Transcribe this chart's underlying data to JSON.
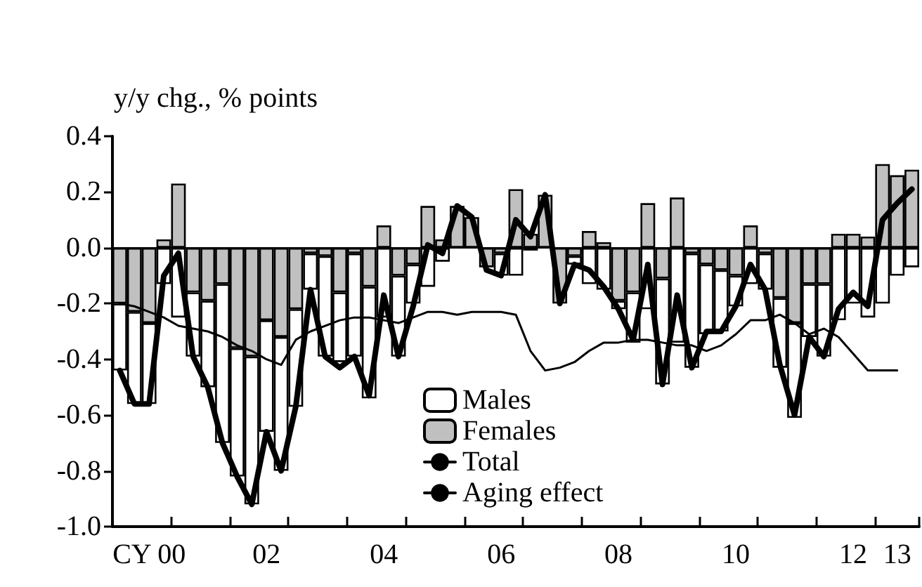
{
  "chart_data": {
    "type": "bar",
    "ylabel": "y/y chg., % points",
    "categories": [
      null,
      null,
      "CY 00",
      null,
      null,
      null,
      null,
      null,
      null,
      null,
      "02",
      null,
      null,
      null,
      null,
      null,
      null,
      null,
      "04",
      null,
      null,
      null,
      null,
      null,
      null,
      null,
      "06",
      null,
      null,
      null,
      null,
      null,
      null,
      null,
      "08",
      null,
      null,
      null,
      null,
      null,
      null,
      null,
      "10",
      null,
      null,
      null,
      null,
      null,
      null,
      null,
      "12",
      null,
      null,
      "13",
      null
    ],
    "stacked": true,
    "series": [
      {
        "name": "Females",
        "color": "#c0c0c0",
        "values": [
          -0.2,
          -0.23,
          -0.27,
          0.03,
          0.23,
          -0.16,
          -0.19,
          -0.13,
          -0.36,
          -0.39,
          -0.26,
          -0.32,
          -0.22,
          -0.02,
          -0.03,
          -0.16,
          -0.02,
          -0.14,
          0.08,
          -0.1,
          -0.06,
          0.15,
          0.03,
          0.15,
          0.11,
          -0.07,
          -0.02,
          0.21,
          0.05,
          0.19,
          -0.2,
          -0.03,
          0.06,
          0.02,
          -0.19,
          -0.16,
          0.16,
          -0.11,
          0.18,
          -0.02,
          -0.06,
          -0.08,
          -0.1,
          0.08,
          -0.02,
          -0.18,
          -0.27,
          -0.13,
          -0.13,
          0.05,
          0.05,
          0.04,
          0.3,
          0.26,
          0.28
        ]
      },
      {
        "name": "Males",
        "color": "#ffffff",
        "values": [
          -0.24,
          -0.33,
          -0.29,
          -0.13,
          -0.25,
          -0.23,
          -0.31,
          -0.57,
          -0.46,
          -0.53,
          -0.4,
          -0.48,
          -0.35,
          -0.13,
          -0.36,
          -0.25,
          -0.37,
          -0.4,
          -0.25,
          -0.29,
          -0.14,
          -0.14,
          -0.05,
          0,
          0,
          0,
          -0.08,
          -0.1,
          -0.01,
          0,
          0,
          -0.03,
          -0.13,
          -0.15,
          -0.03,
          -0.18,
          -0.22,
          -0.38,
          -0.34,
          -0.41,
          -0.25,
          -0.22,
          -0.11,
          -0.13,
          -0.13,
          -0.25,
          -0.34,
          -0.19,
          -0.26,
          -0.26,
          -0.2,
          -0.25,
          -0.2,
          -0.1,
          -0.07
        ]
      },
      {
        "name": "Total",
        "type": "line",
        "color": "#000000",
        "values": [
          -0.44,
          -0.56,
          -0.56,
          -0.1,
          -0.02,
          -0.39,
          -0.5,
          -0.7,
          -0.82,
          -0.92,
          -0.66,
          -0.8,
          -0.57,
          -0.15,
          -0.39,
          -0.43,
          -0.39,
          -0.53,
          -0.17,
          -0.39,
          -0.21,
          0.01,
          -0.02,
          0.15,
          0.11,
          -0.08,
          -0.1,
          0.1,
          0.04,
          0.19,
          -0.2,
          -0.06,
          -0.08,
          -0.14,
          -0.22,
          -0.33,
          -0.06,
          -0.49,
          -0.17,
          -0.43,
          -0.3,
          -0.3,
          -0.21,
          -0.06,
          -0.15,
          -0.42,
          -0.6,
          -0.32,
          -0.39,
          -0.22,
          -0.16,
          -0.21,
          0.1,
          0.16,
          0.21
        ]
      },
      {
        "name": "Aging effect",
        "type": "line",
        "color": "#000000",
        "values": [
          -0.2,
          -0.21,
          -0.23,
          -0.25,
          -0.28,
          -0.29,
          -0.3,
          -0.32,
          -0.35,
          -0.37,
          -0.4,
          -0.42,
          -0.33,
          -0.3,
          -0.28,
          -0.26,
          -0.25,
          -0.25,
          -0.26,
          -0.27,
          -0.25,
          -0.23,
          -0.23,
          -0.24,
          -0.23,
          -0.23,
          -0.23,
          -0.24,
          -0.37,
          -0.44,
          -0.43,
          -0.41,
          -0.37,
          -0.34,
          -0.34,
          -0.33,
          -0.33,
          -0.34,
          -0.35,
          -0.35,
          -0.37,
          -0.35,
          -0.31,
          -0.26,
          -0.26,
          -0.24,
          -0.27,
          -0.31,
          -0.29,
          -0.32,
          -0.38,
          -0.44,
          -0.44,
          -0.44,
          null
        ]
      }
    ],
    "ylim": [
      -1.0,
      0.4
    ],
    "yticks": [
      {
        "value": -1.0,
        "label": "-1.0"
      },
      {
        "value": -0.8,
        "label": "-0.8"
      },
      {
        "value": -0.6,
        "label": "-0.6"
      },
      {
        "value": -0.4,
        "label": "-0.4"
      },
      {
        "value": -0.2,
        "label": "-0.2"
      },
      {
        "value": 0,
        "label": "0.0"
      },
      {
        "value": 0.2,
        "label": "0.2"
      },
      {
        "value": 0.4,
        "label": "0.4"
      }
    ],
    "ref_lines": [
      {
        "axis": "y",
        "value": 0,
        "color": "#000000"
      }
    ],
    "legend": "bottom",
    "grid": false
  }
}
